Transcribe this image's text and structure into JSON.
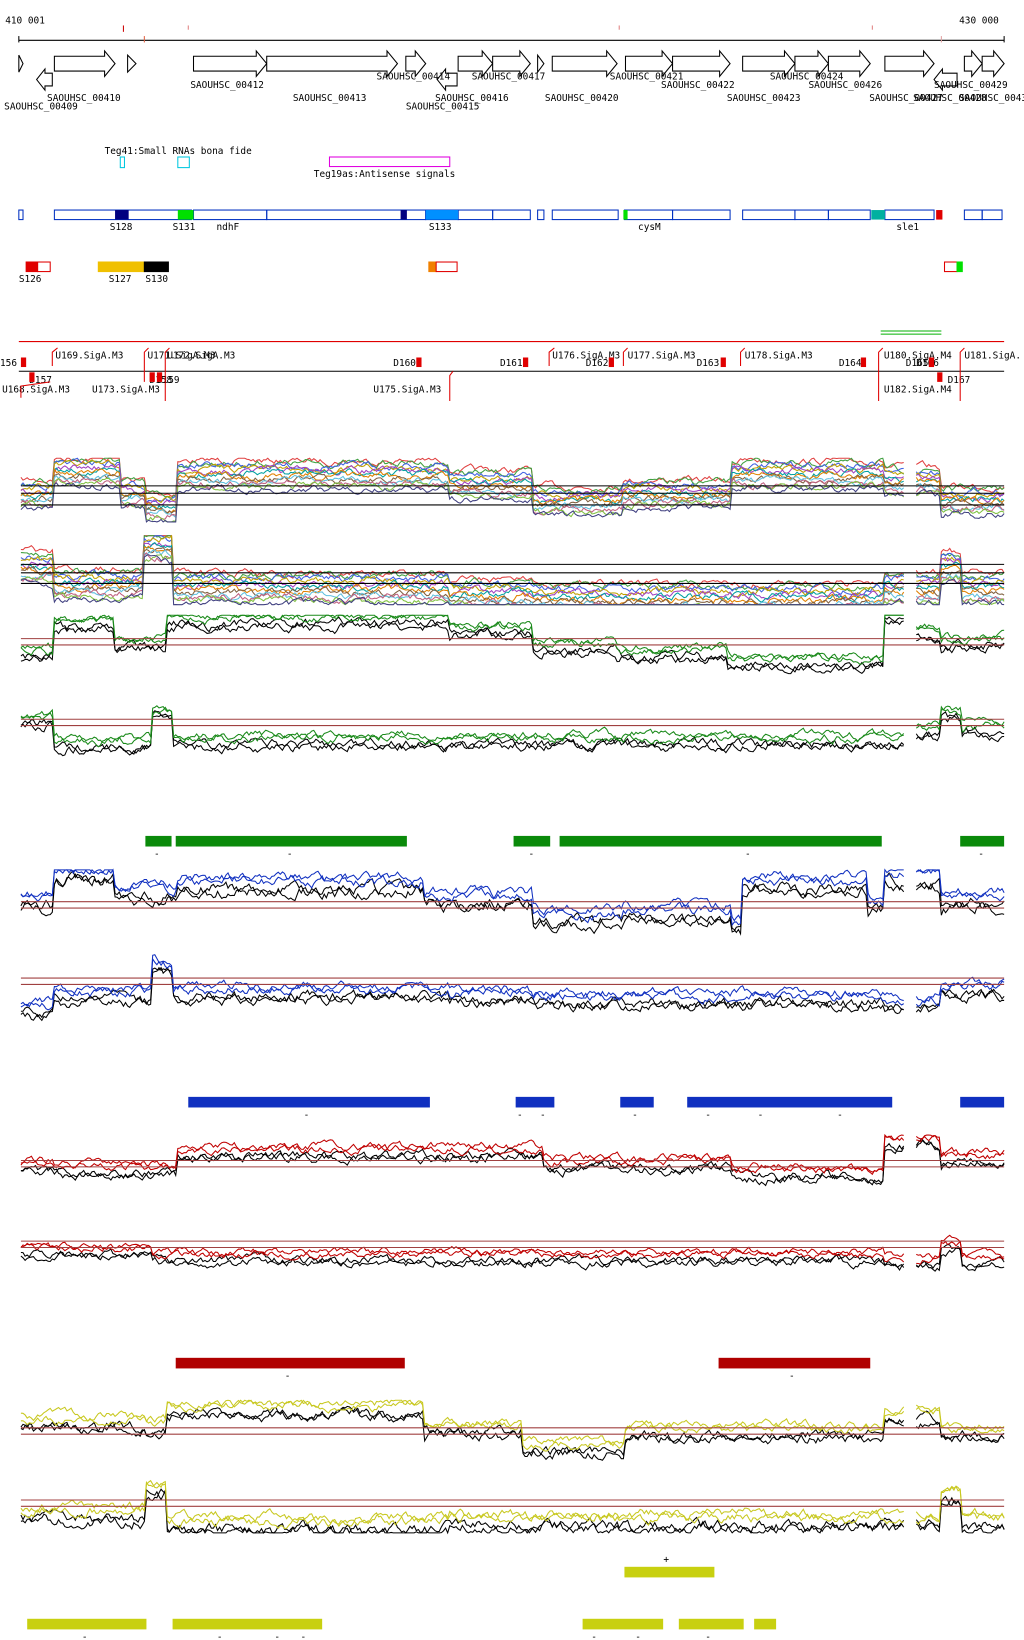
{
  "axis": {
    "start": "410 001",
    "end": "430 000"
  },
  "genes": [
    "SAOUHSC_00409",
    "SAOUHSC_00410",
    "SAOUHSC_00412",
    "SAOUHSC_00413",
    "SAOUHSC_00414",
    "SAOUHSC_00415",
    "SAOUHSC_00416",
    "SAOUHSC_00417",
    "SAOUHSC_00420",
    "SAOUHSC_00421",
    "SAOUHSC_00422",
    "SAOUHSC_00423",
    "SAOUHSC_00424",
    "SAOUHSC_00426",
    "SAOUHSC_00427",
    "SAOUHSC_00428",
    "SAOUHSC_00429",
    "SAOUHSC_0043"
  ],
  "annotations": {
    "small_rnas": "Teg41:Small RNAs bona fide",
    "antisense": "Teg19as:Antisense signals"
  },
  "features": [
    "S128",
    "S131",
    "ndhF",
    "S133",
    "cysM",
    "sle1"
  ],
  "features_row2": [
    "S126",
    "S127",
    "S130"
  ],
  "promoters": [
    "156",
    "U169.SigA.M3",
    "U171.SigA.M3",
    "U172.SigA.M3",
    "D157",
    "U168.SigA.M3",
    "D158",
    "D159",
    "U173.SigA.M3",
    "D160",
    "U175.SigA.M3",
    "D161",
    "U176.SigA.M3",
    "D162",
    "U177.SigA.M3",
    "D163",
    "U178.SigA.M3",
    "D164",
    "U180.SigA.M4",
    "D165",
    "D166",
    "U182.SigA.M4",
    "D167",
    "U181.SigA."
  ],
  "tracks": [
    {
      "signs": [
        "-",
        "-",
        "-",
        "-",
        "-"
      ]
    },
    {
      "signs": [
        "-",
        "-",
        "-",
        "-",
        "-",
        "-",
        "-"
      ]
    },
    {
      "signs": [
        "-",
        "-"
      ]
    },
    {
      "signs": [
        "+"
      ]
    },
    {
      "signs": [
        "-",
        "-",
        "-",
        "-",
        "-",
        "-",
        "-"
      ]
    }
  ]
}
